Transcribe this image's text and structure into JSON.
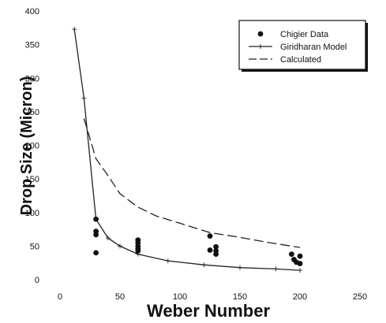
{
  "chart_data": {
    "type": "line",
    "xlabel": "Weber Number",
    "ylabel": "Drop Size (Micron)",
    "xlim": [
      0,
      250
    ],
    "ylim": [
      0,
      400
    ],
    "xticks": [
      0,
      50,
      100,
      150,
      200,
      250
    ],
    "yticks": [
      0,
      50,
      100,
      150,
      200,
      250,
      300,
      350,
      400
    ],
    "legend_position": "top-right",
    "grid": false,
    "series": [
      {
        "name": "Chigier Data",
        "kind": "scatter",
        "marker": "filled-circle",
        "color": "#111111",
        "points": [
          [
            30,
            90
          ],
          [
            30,
            72
          ],
          [
            30,
            67
          ],
          [
            30,
            40
          ],
          [
            65,
            59
          ],
          [
            65,
            55
          ],
          [
            65,
            50
          ],
          [
            65,
            46
          ],
          [
            65,
            43
          ],
          [
            125,
            65
          ],
          [
            125,
            44
          ],
          [
            130,
            49
          ],
          [
            130,
            43
          ],
          [
            130,
            38
          ],
          [
            193,
            38
          ],
          [
            195,
            30
          ],
          [
            197,
            26
          ],
          [
            200,
            35
          ],
          [
            200,
            24
          ]
        ]
      },
      {
        "name": "Giridharan Model",
        "kind": "line",
        "style": "solid-with-markers",
        "color": "#222222",
        "points": [
          [
            12,
            373
          ],
          [
            20,
            270
          ],
          [
            30,
            90
          ],
          [
            40,
            62
          ],
          [
            50,
            50
          ],
          [
            65,
            38
          ],
          [
            90,
            28
          ],
          [
            120,
            22
          ],
          [
            150,
            18
          ],
          [
            180,
            16
          ],
          [
            200,
            14
          ]
        ]
      },
      {
        "name": "Calculated",
        "kind": "line",
        "style": "long-dash",
        "color": "#222222",
        "points": [
          [
            20,
            240
          ],
          [
            30,
            180
          ],
          [
            40,
            155
          ],
          [
            50,
            128
          ],
          [
            65,
            108
          ],
          [
            80,
            95
          ],
          [
            100,
            84
          ],
          [
            125,
            70
          ],
          [
            150,
            63
          ],
          [
            175,
            55
          ],
          [
            200,
            48
          ]
        ]
      }
    ]
  }
}
